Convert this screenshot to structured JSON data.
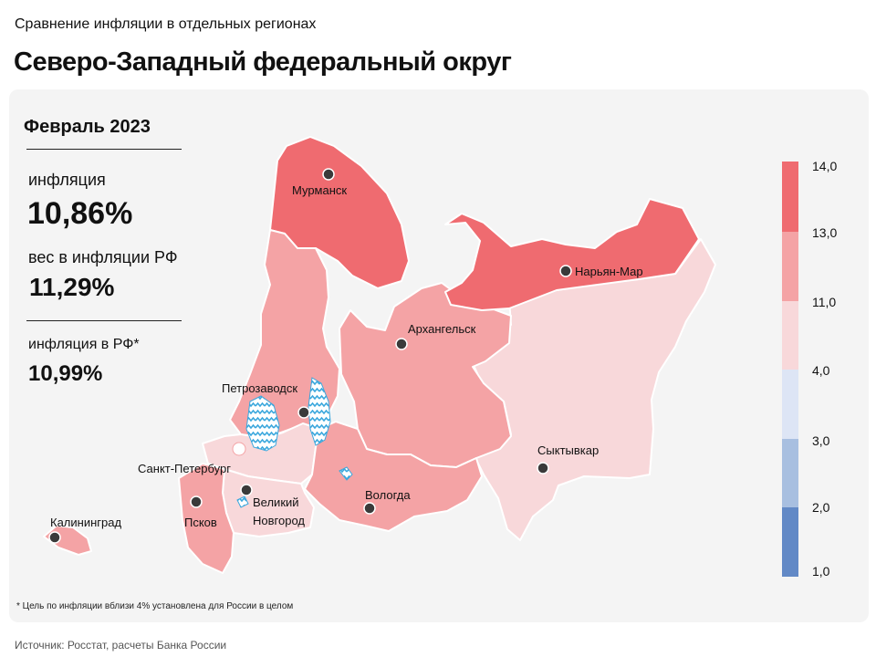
{
  "header": {
    "subtitle": "Сравнение инфляции в отдельных регионах",
    "title": "Северо-Западный федеральный округ"
  },
  "info": {
    "period": "Февраль 2023",
    "inflation_label": "инфляция",
    "inflation_value": "10,86%",
    "weight_label": "вес в инфляции РФ",
    "weight_value": "11,29%",
    "rf_label": "инфляция в РФ*",
    "rf_value": "10,99%"
  },
  "footnote": "* Цель по инфляции вблизи 4% установлена для России в целом",
  "source": "Источник: Росстат, расчеты Банка России",
  "legend": {
    "ticks": [
      "14,0",
      "13,0",
      "11,0",
      "4,0",
      "3,0",
      "2,0",
      "1,0"
    ],
    "colors": [
      "#ef6b70",
      "#f4a3a5",
      "#f8d8da",
      "#dde5f5",
      "#a8bfe0",
      "#6289c6"
    ]
  },
  "colors": {
    "high": "#ef6b70",
    "mid": "#f4a3a5",
    "low": "#f8d8da",
    "water": "#3aa7dd",
    "panel": "#f4f4f4"
  },
  "cities": {
    "murmansk": "Мурманск",
    "naryan_mar": "Нарьян-Мар",
    "arkhangelsk": "Архангельск",
    "petrozavodsk": "Петрозаводск",
    "syktyvkar": "Сыктывкар",
    "spb": "Санкт-Петербург",
    "vologda": "Вологда",
    "velikiy_1": "Великий",
    "velikiy_2": "Новгород",
    "pskov": "Псков",
    "kaliningrad": "Калининград"
  }
}
